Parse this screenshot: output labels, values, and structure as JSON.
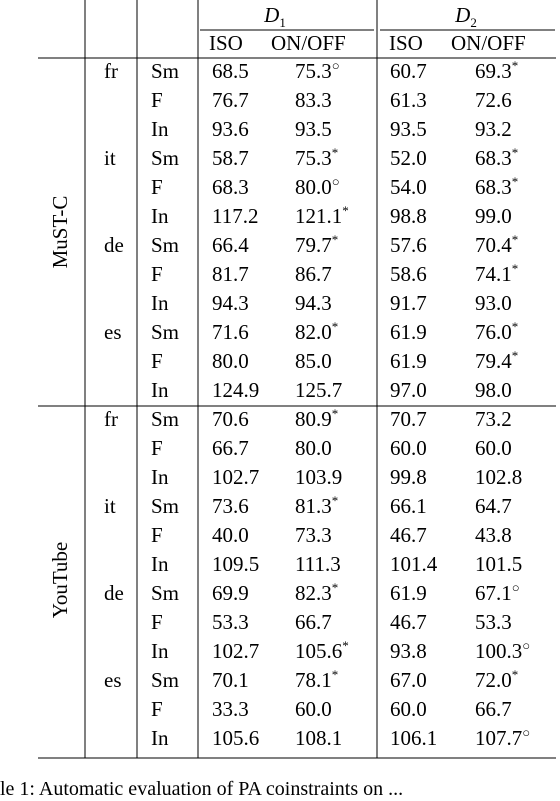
{
  "header": {
    "group1": "D",
    "group1_sub": "1",
    "group2": "D",
    "group2_sub": "2",
    "col_iso": "ISO",
    "col_onoff": "ON/OFF"
  },
  "sections": [
    {
      "name": "MuST-C",
      "langs": [
        {
          "lang": "fr",
          "rows": [
            {
              "type": "Sm",
              "d1_iso": "68.5",
              "d1_on": "75.3",
              "d1_mark": "○",
              "d2_iso": "60.7",
              "d2_on": "69.3",
              "d2_mark": "*"
            },
            {
              "type": "F",
              "d1_iso": "76.7",
              "d1_on": "83.3",
              "d1_mark": "",
              "d2_iso": "61.3",
              "d2_on": "72.6",
              "d2_mark": ""
            },
            {
              "type": "In",
              "d1_iso": "93.6",
              "d1_on": "93.5",
              "d1_mark": "",
              "d2_iso": "93.5",
              "d2_on": "93.2",
              "d2_mark": ""
            }
          ]
        },
        {
          "lang": "it",
          "rows": [
            {
              "type": "Sm",
              "d1_iso": "58.7",
              "d1_on": "75.3",
              "d1_mark": "*",
              "d2_iso": "52.0",
              "d2_on": "68.3",
              "d2_mark": "*"
            },
            {
              "type": "F",
              "d1_iso": "68.3",
              "d1_on": "80.0",
              "d1_mark": "○",
              "d2_iso": "54.0",
              "d2_on": "68.3",
              "d2_mark": "*"
            },
            {
              "type": "In",
              "d1_iso": "117.2",
              "d1_on": "121.1",
              "d1_mark": "*",
              "d2_iso": "98.8",
              "d2_on": "99.0",
              "d2_mark": ""
            }
          ]
        },
        {
          "lang": "de",
          "rows": [
            {
              "type": "Sm",
              "d1_iso": "66.4",
              "d1_on": "79.7",
              "d1_mark": "*",
              "d2_iso": "57.6",
              "d2_on": "70.4",
              "d2_mark": "*"
            },
            {
              "type": "F",
              "d1_iso": "81.7",
              "d1_on": "86.7",
              "d1_mark": "",
              "d2_iso": "58.6",
              "d2_on": "74.1",
              "d2_mark": "*"
            },
            {
              "type": "In",
              "d1_iso": "94.3",
              "d1_on": "94.3",
              "d1_mark": "",
              "d2_iso": "91.7",
              "d2_on": "93.0",
              "d2_mark": ""
            }
          ]
        },
        {
          "lang": "es",
          "rows": [
            {
              "type": "Sm",
              "d1_iso": "71.6",
              "d1_on": "82.0",
              "d1_mark": "*",
              "d2_iso": "61.9",
              "d2_on": "76.0",
              "d2_mark": "*"
            },
            {
              "type": "F",
              "d1_iso": "80.0",
              "d1_on": "85.0",
              "d1_mark": "",
              "d2_iso": "61.9",
              "d2_on": "79.4",
              "d2_mark": "*"
            },
            {
              "type": "In",
              "d1_iso": "124.9",
              "d1_on": "125.7",
              "d1_mark": "",
              "d2_iso": "97.0",
              "d2_on": "98.0",
              "d2_mark": ""
            }
          ]
        }
      ]
    },
    {
      "name": "YouTube",
      "langs": [
        {
          "lang": "fr",
          "rows": [
            {
              "type": "Sm",
              "d1_iso": "70.6",
              "d1_on": "80.9",
              "d1_mark": "*",
              "d2_iso": "70.7",
              "d2_on": "73.2",
              "d2_mark": ""
            },
            {
              "type": "F",
              "d1_iso": "66.7",
              "d1_on": "80.0",
              "d1_mark": "",
              "d2_iso": "60.0",
              "d2_on": "60.0",
              "d2_mark": ""
            },
            {
              "type": "In",
              "d1_iso": "102.7",
              "d1_on": "103.9",
              "d1_mark": "",
              "d2_iso": "99.8",
              "d2_on": "102.8",
              "d2_mark": ""
            }
          ]
        },
        {
          "lang": "it",
          "rows": [
            {
              "type": "Sm",
              "d1_iso": "73.6",
              "d1_on": "81.3",
              "d1_mark": "*",
              "d2_iso": "66.1",
              "d2_on": "64.7",
              "d2_mark": ""
            },
            {
              "type": "F",
              "d1_iso": "40.0",
              "d1_on": "73.3",
              "d1_mark": "",
              "d2_iso": "46.7",
              "d2_on": "43.8",
              "d2_mark": ""
            },
            {
              "type": "In",
              "d1_iso": "109.5",
              "d1_on": "111.3",
              "d1_mark": "",
              "d2_iso": "101.4",
              "d2_on": "101.5",
              "d2_mark": ""
            }
          ]
        },
        {
          "lang": "de",
          "rows": [
            {
              "type": "Sm",
              "d1_iso": "69.9",
              "d1_on": "82.3",
              "d1_mark": "*",
              "d2_iso": "61.9",
              "d2_on": "67.1",
              "d2_mark": "○"
            },
            {
              "type": "F",
              "d1_iso": "53.3",
              "d1_on": "66.7",
              "d1_mark": "",
              "d2_iso": "46.7",
              "d2_on": "53.3",
              "d2_mark": ""
            },
            {
              "type": "In",
              "d1_iso": "102.7",
              "d1_on": "105.6",
              "d1_mark": "*",
              "d2_iso": "93.8",
              "d2_on": "100.3",
              "d2_mark": "○"
            }
          ]
        },
        {
          "lang": "es",
          "rows": [
            {
              "type": "Sm",
              "d1_iso": "70.1",
              "d1_on": "78.1",
              "d1_mark": "*",
              "d2_iso": "67.0",
              "d2_on": "72.0",
              "d2_mark": "*"
            },
            {
              "type": "F",
              "d1_iso": "33.3",
              "d1_on": "60.0",
              "d1_mark": "",
              "d2_iso": "60.0",
              "d2_on": "66.7",
              "d2_mark": ""
            },
            {
              "type": "In",
              "d1_iso": "105.6",
              "d1_on": "108.1",
              "d1_mark": "",
              "d2_iso": "106.1",
              "d2_on": "107.7",
              "d2_mark": "○"
            }
          ]
        }
      ]
    }
  ],
  "caption": "le 1: Automatic evaluation of PA coinstraints on ..."
}
